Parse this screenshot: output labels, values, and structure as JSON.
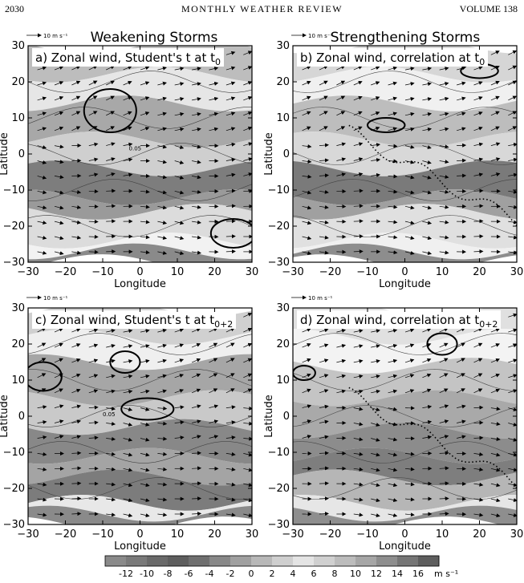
{
  "header": {
    "page": "2030",
    "journal": "MONTHLY WEATHER REVIEW",
    "volume": "VOLUME 138"
  },
  "figure": {
    "column_titles": [
      "Weakening Storms",
      "Strengthening Storms"
    ],
    "scale_arrow_label": "10 m s⁻¹",
    "xlabel": "Longitude",
    "ylabel": "Latitude",
    "ticks": [
      -30,
      -20,
      -10,
      0,
      10,
      20,
      30
    ],
    "contour_label": "0.05",
    "panels": [
      {
        "label_main": "a) Zonal wind, Student's t at t",
        "label_sub": "0"
      },
      {
        "label_main": "b) Zonal wind, correlation at t",
        "label_sub": "0"
      },
      {
        "label_main": "c) Zonal wind, Student's t at t",
        "label_sub": "0+2"
      },
      {
        "label_main": "d) Zonal wind, correlation at t",
        "label_sub": "0+2"
      }
    ],
    "colorbar": {
      "ticks": [
        "-12",
        "-10",
        "-8",
        "-6",
        "-4",
        "-2",
        "0",
        "2",
        "4",
        "6",
        "8",
        "10",
        "12",
        "14",
        "16"
      ],
      "unit": "m s⁻¹",
      "colors": [
        "#8a8a8a",
        "#7a7a7a",
        "#6a6a6a",
        "#5e5e5e",
        "#6f6f6f",
        "#888888",
        "#a0a0a0",
        "#b8b8b8",
        "#cfcfcf",
        "#e4e4e4",
        "#d0d0d0",
        "#bcbcbc",
        "#a6a6a6",
        "#8e8e8e",
        "#767676",
        "#5e5e5e"
      ]
    }
  }
}
